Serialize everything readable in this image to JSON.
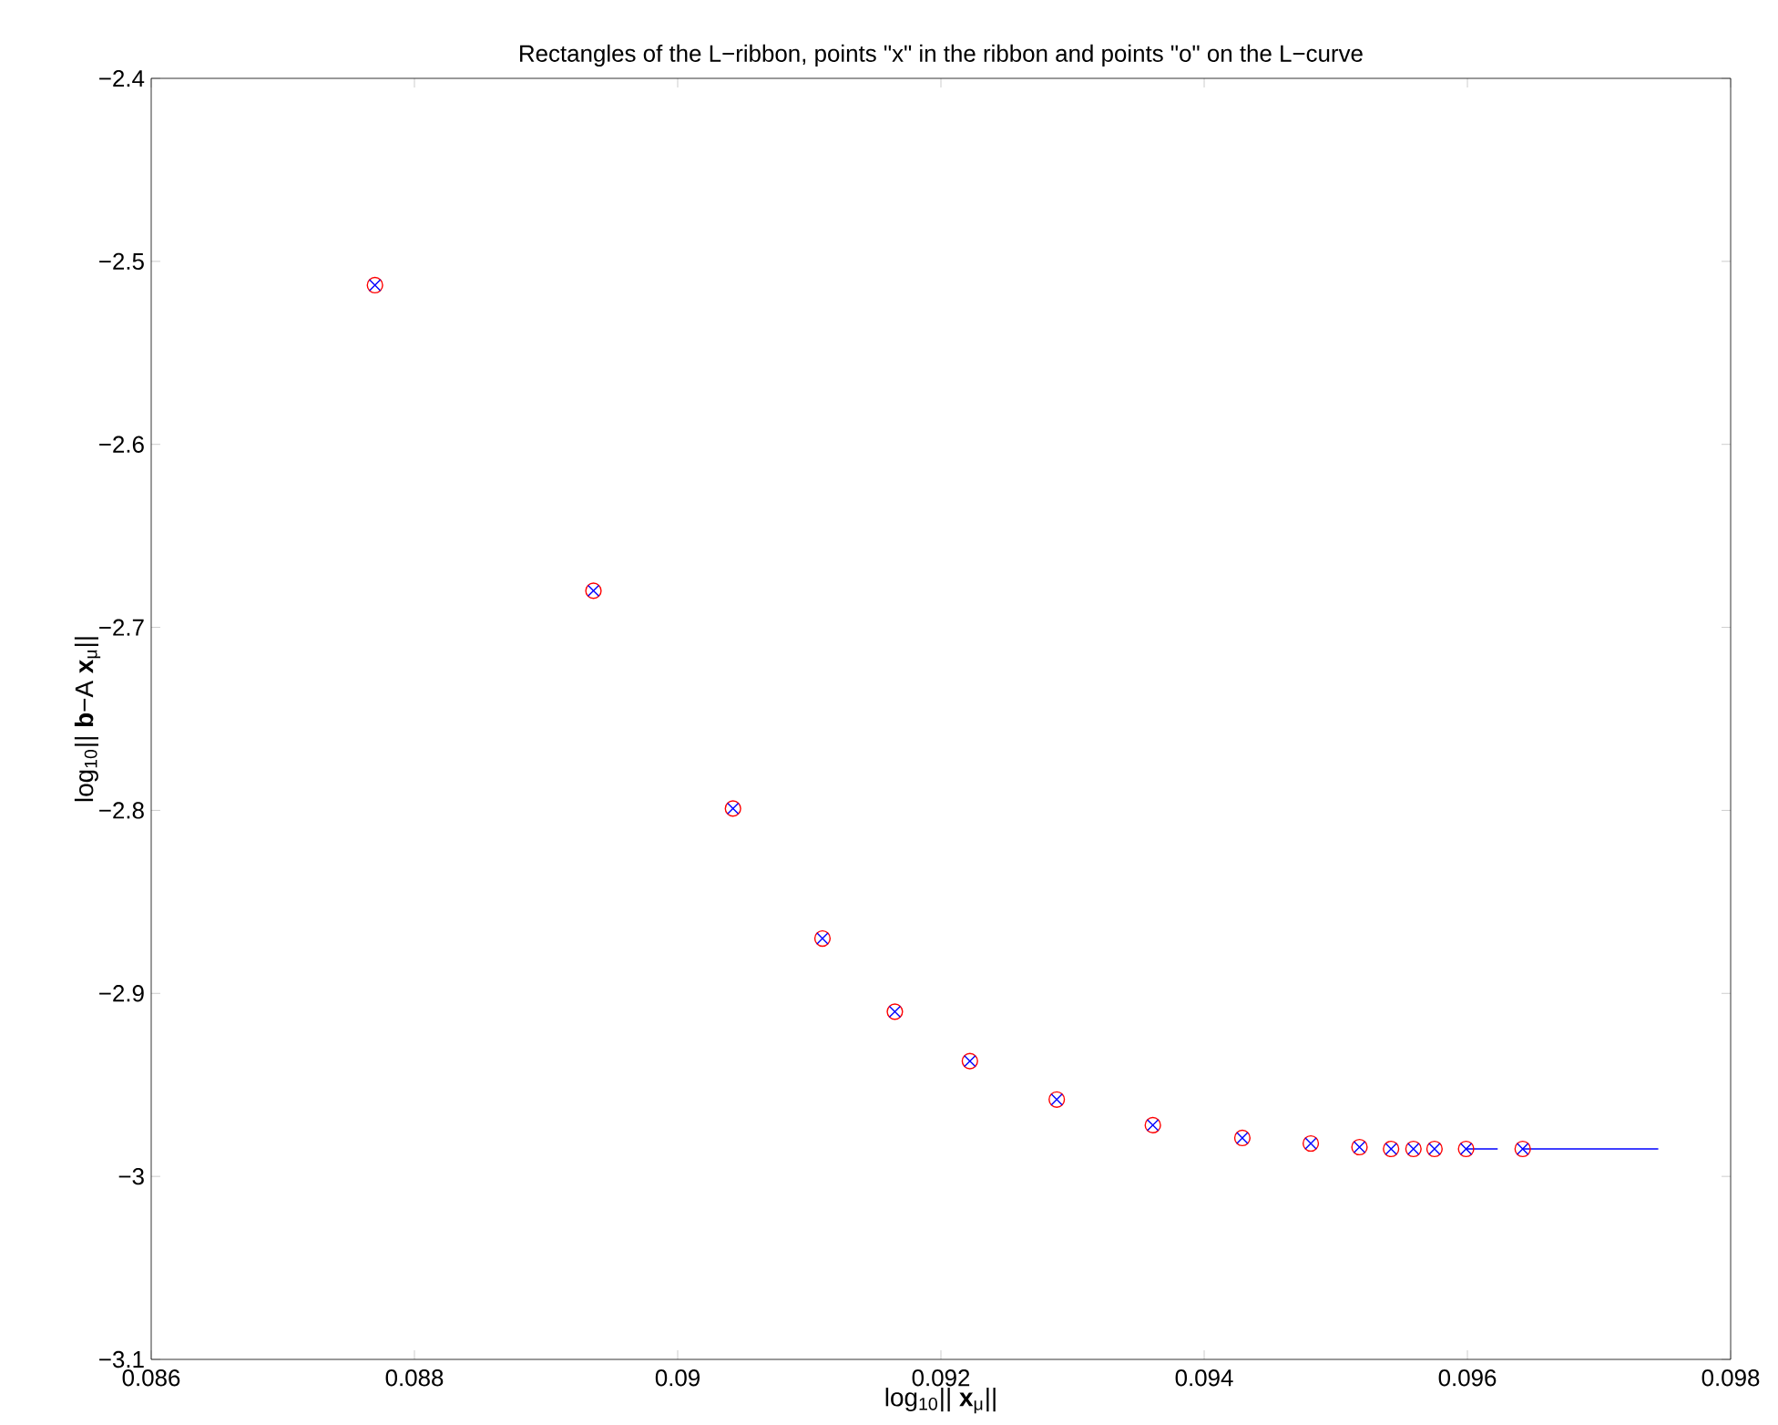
{
  "chart_data": {
    "type": "scatter",
    "title": "Rectangles of the L−ribbon, points \"x\" in the ribbon and points \"o\" on the L−curve",
    "xlabel": "log$_{10}$|| **x**$_{μ}$||",
    "ylabel": "log$_{10}$|| **b**−A **x**$_{μ}$||",
    "xlim": [
      0.086,
      0.098
    ],
    "ylim": [
      -3.1,
      -2.4
    ],
    "xticks": [
      {
        "value": 0.086,
        "label": "0.086"
      },
      {
        "value": 0.088,
        "label": "0.088"
      },
      {
        "value": 0.09,
        "label": "0.09"
      },
      {
        "value": 0.092,
        "label": "0.092"
      },
      {
        "value": 0.094,
        "label": "0.094"
      },
      {
        "value": 0.096,
        "label": "0.096"
      },
      {
        "value": 0.098,
        "label": "0.098"
      }
    ],
    "yticks": [
      {
        "value": -3.1,
        "label": "−3.1"
      },
      {
        "value": -3,
        "label": "−3"
      },
      {
        "value": -2.9,
        "label": "−2.9"
      },
      {
        "value": -2.8,
        "label": "−2.8"
      },
      {
        "value": -2.7,
        "label": "−2.7"
      },
      {
        "value": -2.6,
        "label": "−2.6"
      },
      {
        "value": -2.5,
        "label": "−2.5"
      },
      {
        "value": -2.4,
        "label": "−2.4"
      }
    ],
    "series": [
      {
        "type": "line",
        "color": "#0000ff",
        "marker": "none",
        "x": [
          0.09599,
          0.09623,
          null,
          0.09642,
          0.09745
        ],
        "values": [
          -2.985,
          -2.985,
          null,
          -2.985,
          -2.985
        ]
      },
      {
        "color": "#ff0000",
        "marker": "circle",
        "x": [
          0.0877,
          0.08936,
          0.09042,
          0.0911,
          0.09165,
          0.09222,
          0.09288,
          0.09361,
          0.09429,
          0.09481,
          0.09518,
          0.09542,
          0.09559,
          0.09575,
          0.09599,
          0.09642
        ],
        "values": [
          -2.513,
          -2.68,
          -2.799,
          -2.87,
          -2.91,
          -2.937,
          -2.958,
          -2.972,
          -2.979,
          -2.982,
          -2.984,
          -2.985,
          -2.985,
          -2.985,
          -2.985,
          -2.985
        ]
      },
      {
        "color": "#0000ff",
        "marker": "cross",
        "x": [
          0.0877,
          0.08936,
          0.09042,
          0.0911,
          0.09165,
          0.09222,
          0.09288,
          0.09361,
          0.09429,
          0.09481,
          0.09518,
          0.09542,
          0.09559,
          0.09575,
          0.09599,
          0.09642
        ],
        "values": [
          -2.513,
          -2.68,
          -2.799,
          -2.87,
          -2.91,
          -2.937,
          -2.958,
          -2.972,
          -2.979,
          -2.982,
          -2.984,
          -2.985,
          -2.985,
          -2.985,
          -2.985,
          -2.985
        ]
      }
    ]
  }
}
